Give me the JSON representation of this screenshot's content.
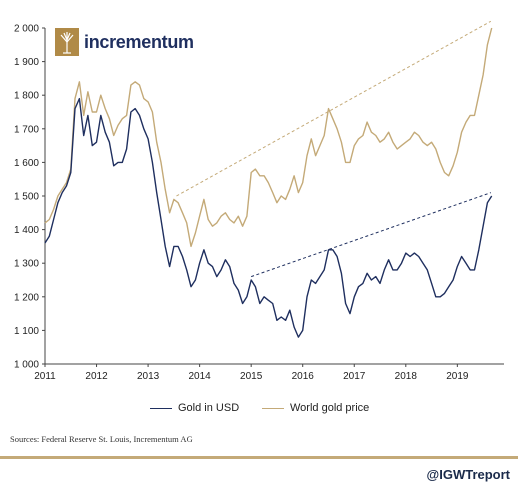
{
  "colors": {
    "gold_usd": "#1f2f5f",
    "world_gold": "#c4aa78",
    "divider": "#c4aa78",
    "logo_text": "#1f2f5f",
    "logo_mark": "#b08a47"
  },
  "logo": {
    "text": "incrementum",
    "icon": "tree-icon"
  },
  "source_text": "Sources: Federal Reserve St. Louis, Incrementum AG",
  "handle": "@IGWTreport",
  "chart_data": {
    "type": "line",
    "title": "",
    "xlabel": "",
    "ylabel": "",
    "ylim": [
      1000,
      2000
    ],
    "xlim": [
      2011.0,
      2019.75
    ],
    "grid": false,
    "legend": "bottom",
    "y_ticks": [
      "1 000",
      "1 100",
      "1 200",
      "1 300",
      "1 400",
      "1 500",
      "1 600",
      "1 700",
      "1 800",
      "1 900",
      "2 000"
    ],
    "x_ticks": [
      "2011",
      "2012",
      "2013",
      "2014",
      "2015",
      "2016",
      "2017",
      "2018",
      "2019"
    ],
    "x": [
      2011.0,
      2011.083,
      2011.167,
      2011.25,
      2011.333,
      2011.417,
      2011.5,
      2011.583,
      2011.667,
      2011.75,
      2011.833,
      2011.917,
      2012.0,
      2012.083,
      2012.167,
      2012.25,
      2012.333,
      2012.417,
      2012.5,
      2012.583,
      2012.667,
      2012.75,
      2012.833,
      2012.917,
      2013.0,
      2013.083,
      2013.167,
      2013.25,
      2013.333,
      2013.417,
      2013.5,
      2013.583,
      2013.667,
      2013.75,
      2013.833,
      2013.917,
      2014.0,
      2014.083,
      2014.167,
      2014.25,
      2014.333,
      2014.417,
      2014.5,
      2014.583,
      2014.667,
      2014.75,
      2014.833,
      2014.917,
      2015.0,
      2015.083,
      2015.167,
      2015.25,
      2015.333,
      2015.417,
      2015.5,
      2015.583,
      2015.667,
      2015.75,
      2015.833,
      2015.917,
      2016.0,
      2016.083,
      2016.167,
      2016.25,
      2016.333,
      2016.417,
      2016.5,
      2016.583,
      2016.667,
      2016.75,
      2016.833,
      2016.917,
      2017.0,
      2017.083,
      2017.167,
      2017.25,
      2017.333,
      2017.417,
      2017.5,
      2017.583,
      2017.667,
      2017.75,
      2017.833,
      2017.917,
      2018.0,
      2018.083,
      2018.167,
      2018.25,
      2018.333,
      2018.417,
      2018.5,
      2018.583,
      2018.667,
      2018.75,
      2018.833,
      2018.917,
      2019.0,
      2019.083,
      2019.167,
      2019.25,
      2019.333,
      2019.417,
      2019.5,
      2019.583,
      2019.667
    ],
    "series": [
      {
        "name": "Gold in USD",
        "values": [
          1360,
          1380,
          1430,
          1480,
          1510,
          1530,
          1570,
          1760,
          1790,
          1680,
          1740,
          1650,
          1660,
          1740,
          1690,
          1660,
          1590,
          1600,
          1600,
          1640,
          1750,
          1760,
          1740,
          1700,
          1670,
          1600,
          1510,
          1430,
          1350,
          1290,
          1350,
          1350,
          1320,
          1280,
          1230,
          1250,
          1300,
          1340,
          1300,
          1290,
          1260,
          1280,
          1310,
          1290,
          1240,
          1220,
          1180,
          1200,
          1250,
          1230,
          1180,
          1200,
          1190,
          1180,
          1130,
          1140,
          1130,
          1160,
          1110,
          1080,
          1100,
          1200,
          1250,
          1240,
          1260,
          1280,
          1340,
          1340,
          1320,
          1270,
          1180,
          1150,
          1200,
          1230,
          1240,
          1270,
          1250,
          1260,
          1240,
          1280,
          1310,
          1280,
          1280,
          1300,
          1330,
          1320,
          1330,
          1320,
          1300,
          1280,
          1240,
          1200,
          1200,
          1210,
          1230,
          1250,
          1290,
          1320,
          1300,
          1280,
          1280,
          1340,
          1410,
          1480,
          1500
        ]
      },
      {
        "name": "World gold price",
        "values": [
          1420,
          1430,
          1460,
          1500,
          1520,
          1540,
          1580,
          1790,
          1840,
          1740,
          1810,
          1750,
          1750,
          1800,
          1760,
          1730,
          1680,
          1710,
          1730,
          1740,
          1830,
          1840,
          1830,
          1790,
          1780,
          1750,
          1660,
          1600,
          1520,
          1450,
          1490,
          1480,
          1450,
          1420,
          1350,
          1390,
          1440,
          1490,
          1430,
          1410,
          1420,
          1440,
          1450,
          1430,
          1420,
          1440,
          1410,
          1440,
          1570,
          1580,
          1560,
          1560,
          1540,
          1510,
          1480,
          1500,
          1490,
          1520,
          1560,
          1510,
          1540,
          1620,
          1670,
          1620,
          1650,
          1680,
          1760,
          1730,
          1700,
          1660,
          1600,
          1600,
          1650,
          1670,
          1680,
          1720,
          1690,
          1680,
          1660,
          1670,
          1690,
          1660,
          1640,
          1650,
          1660,
          1670,
          1690,
          1680,
          1660,
          1650,
          1660,
          1640,
          1600,
          1570,
          1560,
          1590,
          1630,
          1690,
          1720,
          1740,
          1740,
          1800,
          1860,
          1950,
          2000
        ]
      }
    ],
    "trendlines": [
      {
        "series": "Gold in USD",
        "x": [
          2015.0,
          2019.65
        ],
        "y": [
          1260,
          1510
        ]
      },
      {
        "series": "World gold price",
        "x": [
          2013.55,
          2019.65
        ],
        "y": [
          1500,
          2020
        ]
      }
    ]
  }
}
